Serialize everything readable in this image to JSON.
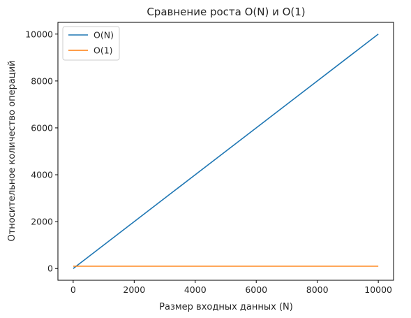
{
  "chart_data": {
    "type": "line",
    "title": "Сравнение роста O(N) и O(1)",
    "xlabel": "Размер входных данных (N)",
    "ylabel": "Относительное количество операций",
    "xlim": [
      -500,
      10500
    ],
    "ylim": [
      -500,
      10500
    ],
    "xticks": [
      0,
      2000,
      4000,
      6000,
      8000,
      10000
    ],
    "yticks": [
      0,
      2000,
      4000,
      6000,
      8000,
      10000
    ],
    "grid": false,
    "legend_position": "top-left",
    "series": [
      {
        "name": "O(N)",
        "color": "#1f77b4",
        "x": [
          1,
          10000
        ],
        "y": [
          1,
          10000
        ]
      },
      {
        "name": "O(1)",
        "color": "#ff7f0e",
        "x": [
          1,
          10000
        ],
        "y": [
          100,
          100
        ]
      }
    ]
  }
}
